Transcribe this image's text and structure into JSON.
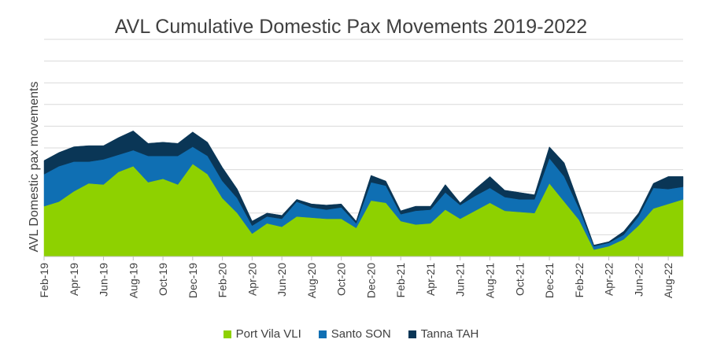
{
  "chart_data": {
    "type": "area",
    "stacked": true,
    "title": "AVL Cumulative Domestic Pax Movements 2019-2022",
    "xlabel": "",
    "ylabel": "AVL Domestic pax movements",
    "grid": true,
    "legend_position": "bottom",
    "x": [
      "Feb-19",
      "Mar-19",
      "Apr-19",
      "May-19",
      "Jun-19",
      "Jul-19",
      "Aug-19",
      "Sep-19",
      "Oct-19",
      "Nov-19",
      "Dec-19",
      "Jan-20",
      "Feb-20",
      "Mar-20",
      "Apr-20",
      "May-20",
      "Jun-20",
      "Jul-20",
      "Aug-20",
      "Sep-20",
      "Oct-20",
      "Nov-20",
      "Dec-20",
      "Jan-21",
      "Feb-21",
      "Mar-21",
      "Apr-21",
      "May-21",
      "Jun-21",
      "Jul-21",
      "Aug-21",
      "Sep-21",
      "Oct-21",
      "Nov-21",
      "Dec-21",
      "Jan-22",
      "Feb-22",
      "Mar-22",
      "Apr-22",
      "May-22",
      "Jun-22",
      "Jul-22",
      "Aug-22",
      "Sep-22"
    ],
    "tick_labels": [
      "Feb-19",
      "Apr-19",
      "Jun-19",
      "Aug-19",
      "Oct-19",
      "Dec-19",
      "Feb-20",
      "Apr-20",
      "Jun-20",
      "Aug-20",
      "Oct-20",
      "Dec-20",
      "Feb-21",
      "Apr-21",
      "Jun-21",
      "Aug-21",
      "Oct-21",
      "Dec-21",
      "Feb-22",
      "Apr-22",
      "Jun-22",
      "Aug-22"
    ],
    "ylim": [
      0,
      9.5
    ],
    "y_tick_count": 9,
    "series": [
      {
        "name": "Port Vila VLI",
        "color": "#8ED100",
        "values": [
          2.2,
          2.4,
          2.85,
          3.2,
          3.15,
          3.7,
          3.95,
          3.25,
          3.4,
          3.15,
          4.05,
          3.6,
          2.55,
          1.9,
          1.0,
          1.45,
          1.3,
          1.75,
          1.7,
          1.65,
          1.65,
          1.25,
          2.45,
          2.35,
          1.55,
          1.4,
          1.45,
          2.05,
          1.65,
          2.0,
          2.35,
          2.0,
          1.95,
          1.9,
          3.2,
          2.4,
          1.6,
          0.3,
          0.45,
          0.75,
          1.35,
          2.1,
          2.3,
          2.5
        ]
      },
      {
        "name": "Santo SON",
        "color": "#0F6FB3",
        "values": [
          1.4,
          1.55,
          1.3,
          0.95,
          1.1,
          0.75,
          0.7,
          1.15,
          1.0,
          1.25,
          0.75,
          0.8,
          0.75,
          0.65,
          0.35,
          0.3,
          0.35,
          0.65,
          0.45,
          0.4,
          0.5,
          0.2,
          0.8,
          0.75,
          0.3,
          0.6,
          0.6,
          0.75,
          0.6,
          0.65,
          0.65,
          0.6,
          0.55,
          0.6,
          1.1,
          1.1,
          0.5,
          0.15,
          0.15,
          0.2,
          0.4,
          0.9,
          0.65,
          0.55
        ]
      },
      {
        "name": "Tanna TAH",
        "color": "#0A3656",
        "values": [
          0.6,
          0.6,
          0.65,
          0.7,
          0.6,
          0.75,
          0.85,
          0.55,
          0.6,
          0.55,
          0.65,
          0.6,
          0.6,
          0.4,
          0.2,
          0.15,
          0.15,
          0.1,
          0.15,
          0.2,
          0.15,
          0.1,
          0.3,
          0.2,
          0.15,
          0.2,
          0.15,
          0.35,
          0.1,
          0.3,
          0.5,
          0.3,
          0.3,
          0.2,
          0.5,
          0.6,
          0.2,
          0.05,
          0.05,
          0.15,
          0.15,
          0.2,
          0.55,
          0.45
        ]
      }
    ]
  }
}
